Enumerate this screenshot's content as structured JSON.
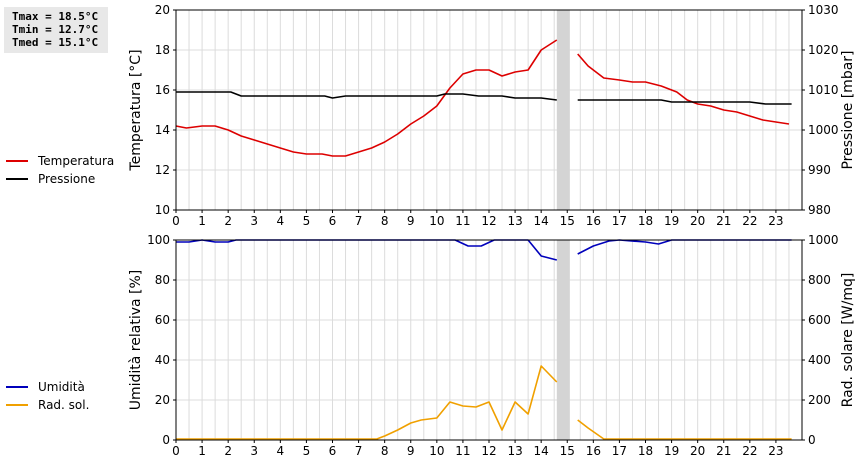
{
  "stats": {
    "tmax": "Tmax = 18.5°C",
    "tmin": "Tmin = 12.7°C",
    "tmed": "Tmed = 15.1°C"
  },
  "chart_data": [
    {
      "type": "line",
      "xlim": [
        0,
        24
      ],
      "x_ticks": [
        "0",
        "1",
        "2",
        "3",
        "4",
        "5",
        "6",
        "7",
        "8",
        "9",
        "10",
        "11",
        "12",
        "13",
        "14",
        "15",
        "16",
        "17",
        "18",
        "19",
        "20",
        "21",
        "22",
        "23"
      ],
      "gap": [
        14.6,
        15.1
      ],
      "ylabel_left": "Temperatura [°C]",
      "ylabel_right": "Pressione [mbar]",
      "ylim_left": [
        10,
        20
      ],
      "ylim_right": [
        980,
        1030
      ],
      "yticks_left": [
        10,
        12,
        14,
        16,
        18,
        20
      ],
      "yticks_right": [
        980,
        990,
        1000,
        1010,
        1020,
        1030
      ],
      "grid": true,
      "legend_position": "left",
      "series": [
        {
          "name": "Temperatura",
          "axis": "left",
          "color": "#dd0000",
          "segments": [
            [
              [
                0,
                14.2
              ],
              [
                0.4,
                14.1
              ],
              [
                1,
                14.2
              ],
              [
                1.5,
                14.2
              ],
              [
                2,
                14.0
              ],
              [
                2.5,
                13.7
              ],
              [
                3,
                13.5
              ],
              [
                3.5,
                13.3
              ],
              [
                4,
                13.1
              ],
              [
                4.5,
                12.9
              ],
              [
                5,
                12.8
              ],
              [
                5.6,
                12.8
              ],
              [
                6,
                12.7
              ],
              [
                6.5,
                12.7
              ],
              [
                7,
                12.9
              ],
              [
                7.5,
                13.1
              ],
              [
                8,
                13.4
              ],
              [
                8.5,
                13.8
              ],
              [
                9,
                14.3
              ],
              [
                9.5,
                14.7
              ],
              [
                10,
                15.2
              ],
              [
                10.5,
                16.1
              ],
              [
                11,
                16.8
              ],
              [
                11.5,
                17.0
              ],
              [
                12,
                17.0
              ],
              [
                12.5,
                16.7
              ],
              [
                13,
                16.9
              ],
              [
                13.5,
                17.0
              ],
              [
                14,
                18.0
              ],
              [
                14.6,
                18.5
              ]
            ],
            [
              [
                15.4,
                17.8
              ],
              [
                15.8,
                17.2
              ],
              [
                16.4,
                16.6
              ],
              [
                17,
                16.5
              ],
              [
                17.5,
                16.4
              ],
              [
                18,
                16.4
              ],
              [
                18.6,
                16.2
              ],
              [
                19,
                16.0
              ],
              [
                19.2,
                15.9
              ],
              [
                19.6,
                15.5
              ],
              [
                20,
                15.3
              ],
              [
                20.5,
                15.2
              ],
              [
                21,
                15.0
              ],
              [
                21.5,
                14.9
              ],
              [
                22,
                14.7
              ],
              [
                22.5,
                14.5
              ],
              [
                23,
                14.4
              ],
              [
                23.5,
                14.3
              ]
            ]
          ]
        },
        {
          "name": "Pressione",
          "axis": "right",
          "color": "#000000",
          "segments": [
            [
              [
                0,
                1009.5
              ],
              [
                2.1,
                1009.5
              ],
              [
                2.5,
                1008.5
              ],
              [
                5.7,
                1008.5
              ],
              [
                6,
                1008
              ],
              [
                6.5,
                1008.5
              ],
              [
                10,
                1008.5
              ],
              [
                10.3,
                1009
              ],
              [
                11,
                1009
              ],
              [
                11.6,
                1008.5
              ],
              [
                12.5,
                1008.5
              ],
              [
                13,
                1008
              ],
              [
                14,
                1008
              ],
              [
                14.6,
                1007.5
              ]
            ],
            [
              [
                15.4,
                1007.5
              ],
              [
                18.6,
                1007.5
              ],
              [
                19,
                1007
              ],
              [
                22,
                1007
              ],
              [
                22.6,
                1006.5
              ],
              [
                23.6,
                1006.5
              ]
            ]
          ]
        }
      ]
    },
    {
      "type": "line",
      "xlim": [
        0,
        24
      ],
      "x_ticks": [
        "0",
        "1",
        "2",
        "3",
        "4",
        "5",
        "6",
        "7",
        "8",
        "9",
        "10",
        "11",
        "12",
        "13",
        "14",
        "15",
        "16",
        "17",
        "18",
        "19",
        "20",
        "21",
        "22",
        "23"
      ],
      "gap": [
        14.6,
        15.1
      ],
      "ylabel_left": "Umidità relativa [%]",
      "ylabel_right": "Rad. solare [W/mq]",
      "ylim_left": [
        0,
        100
      ],
      "ylim_right": [
        0,
        1000
      ],
      "yticks_left": [
        0,
        20,
        40,
        60,
        80,
        100
      ],
      "yticks_right": [
        0,
        200,
        400,
        600,
        800,
        1000
      ],
      "grid": true,
      "legend_position": "left",
      "series": [
        {
          "name": "Umidità",
          "axis": "left",
          "color": "#0000bb",
          "segments": [
            [
              [
                0,
                99
              ],
              [
                0.5,
                99
              ],
              [
                1,
                100
              ],
              [
                1.5,
                99
              ],
              [
                2,
                99
              ],
              [
                2.3,
                100
              ],
              [
                10.7,
                100
              ],
              [
                11.2,
                97
              ],
              [
                11.7,
                97
              ],
              [
                12.2,
                100
              ],
              [
                13.5,
                100
              ],
              [
                14,
                92
              ],
              [
                14.6,
                90
              ]
            ],
            [
              [
                15.4,
                93
              ],
              [
                16,
                97
              ],
              [
                16.6,
                99.5
              ],
              [
                17,
                100
              ],
              [
                18,
                99
              ],
              [
                18.5,
                98
              ],
              [
                19,
                100
              ],
              [
                23.6,
                100
              ]
            ]
          ]
        },
        {
          "name": "Rad. sol.",
          "axis": "right",
          "color": "#f0a000",
          "segments": [
            [
              [
                0,
                5
              ],
              [
                7.7,
                5
              ],
              [
                8,
                20
              ],
              [
                8.5,
                50
              ],
              [
                9,
                85
              ],
              [
                9.4,
                100
              ],
              [
                9.7,
                105
              ],
              [
                10,
                110
              ],
              [
                10.5,
                190
              ],
              [
                11,
                170
              ],
              [
                11.5,
                165
              ],
              [
                12,
                190
              ],
              [
                12.5,
                50
              ],
              [
                13,
                190
              ],
              [
                13.5,
                130
              ],
              [
                14,
                370
              ],
              [
                14.6,
                290
              ]
            ],
            [
              [
                15.4,
                100
              ],
              [
                15.8,
                60
              ],
              [
                16.4,
                5
              ],
              [
                23.6,
                5
              ]
            ]
          ]
        }
      ]
    }
  ]
}
